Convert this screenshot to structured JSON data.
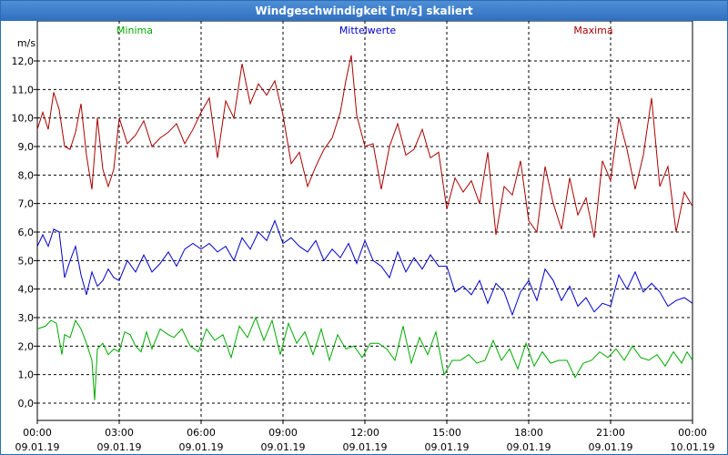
{
  "window": {
    "title": "Windgeschwindigkeit [m/s] skaliert"
  },
  "chart_data": {
    "type": "line",
    "title": "Windgeschwindigkeit [m/s] skaliert",
    "ylabel": "m/s",
    "ylim": [
      -1,
      13
    ],
    "yticks": [
      "0,0",
      "1,0",
      "2,0",
      "3,0",
      "4,0",
      "5,0",
      "6,0",
      "7,0",
      "8,0",
      "9,0",
      "10,0",
      "11,0",
      "12,0"
    ],
    "x_hours": [
      0,
      24
    ],
    "xticks": [
      {
        "time": "00:00",
        "date": "09.01.19"
      },
      {
        "time": "03:00",
        "date": "09.01.19"
      },
      {
        "time": "06:00",
        "date": "09.01.19"
      },
      {
        "time": "09:00",
        "date": "09.01.19"
      },
      {
        "time": "12:00",
        "date": "09.01.19"
      },
      {
        "time": "15:00",
        "date": "09.01.19"
      },
      {
        "time": "18:00",
        "date": "09.01.19"
      },
      {
        "time": "21:00",
        "date": "09.01.19"
      },
      {
        "time": "00:00",
        "date": "10.01.19"
      }
    ],
    "grid": true,
    "series": [
      {
        "name": "Minima",
        "color": "#00aa00",
        "x": [
          0,
          0.3,
          0.5,
          0.7,
          0.9,
          1.0,
          1.2,
          1.4,
          1.6,
          1.8,
          2.0,
          2.1,
          2.2,
          2.4,
          2.6,
          2.8,
          3.0,
          3.2,
          3.4,
          3.6,
          3.8,
          4.0,
          4.2,
          4.5,
          4.8,
          5.0,
          5.3,
          5.6,
          5.9,
          6.2,
          6.5,
          6.8,
          7.1,
          7.4,
          7.7,
          8.0,
          8.3,
          8.6,
          8.9,
          9.2,
          9.5,
          9.8,
          10.1,
          10.4,
          10.7,
          11.0,
          11.3,
          11.6,
          11.9,
          12.2,
          12.5,
          12.8,
          13.1,
          13.4,
          13.7,
          14.0,
          14.3,
          14.6,
          14.9,
          15.2,
          15.5,
          15.8,
          16.1,
          16.4,
          16.7,
          17.0,
          17.3,
          17.6,
          17.9,
          18.2,
          18.5,
          18.8,
          19.1,
          19.4,
          19.7,
          20.0,
          20.3,
          20.6,
          20.9,
          21.2,
          21.5,
          21.8,
          22.1,
          22.4,
          22.7,
          23.0,
          23.3,
          23.6,
          23.8,
          24.0
        ],
        "values": [
          2.6,
          2.7,
          2.9,
          2.8,
          1.7,
          2.4,
          2.3,
          2.9,
          2.6,
          2.1,
          1.5,
          0.1,
          1.9,
          2.1,
          1.7,
          1.9,
          1.8,
          2.5,
          2.4,
          2.0,
          1.8,
          2.5,
          1.9,
          2.6,
          2.4,
          2.3,
          2.6,
          2.0,
          1.8,
          2.6,
          2.2,
          2.4,
          1.6,
          2.7,
          2.3,
          3.0,
          2.2,
          2.9,
          1.7,
          2.8,
          2.1,
          2.5,
          1.7,
          2.6,
          1.5,
          2.4,
          1.9,
          2.0,
          1.6,
          2.1,
          2.1,
          1.9,
          1.5,
          2.7,
          1.4,
          2.3,
          1.7,
          2.5,
          1.0,
          1.5,
          1.5,
          1.7,
          1.4,
          1.5,
          2.2,
          1.5,
          1.9,
          1.2,
          2.1,
          1.3,
          1.8,
          1.4,
          1.5,
          1.5,
          0.9,
          1.4,
          1.5,
          1.8,
          1.6,
          1.9,
          1.5,
          2.0,
          1.6,
          1.5,
          1.7,
          1.3,
          1.8,
          1.4,
          1.8,
          1.5
        ]
      },
      {
        "name": "Mittelwerte",
        "color": "#0000cc",
        "x": [
          0,
          0.2,
          0.4,
          0.6,
          0.8,
          1.0,
          1.2,
          1.4,
          1.6,
          1.8,
          2.0,
          2.2,
          2.4,
          2.6,
          2.8,
          3.0,
          3.3,
          3.6,
          3.9,
          4.2,
          4.5,
          4.8,
          5.1,
          5.4,
          5.7,
          6.0,
          6.3,
          6.6,
          6.9,
          7.2,
          7.5,
          7.8,
          8.1,
          8.4,
          8.7,
          9.0,
          9.3,
          9.6,
          9.9,
          10.2,
          10.5,
          10.8,
          11.1,
          11.4,
          11.7,
          12.0,
          12.3,
          12.6,
          12.9,
          13.2,
          13.5,
          13.8,
          14.1,
          14.4,
          14.7,
          15.0,
          15.3,
          15.6,
          15.9,
          16.2,
          16.5,
          16.8,
          17.1,
          17.4,
          17.7,
          18.0,
          18.3,
          18.6,
          18.9,
          19.2,
          19.5,
          19.8,
          20.1,
          20.4,
          20.7,
          21.0,
          21.3,
          21.6,
          21.9,
          22.2,
          22.5,
          22.8,
          23.1,
          23.4,
          23.7,
          24.0
        ],
        "values": [
          5.5,
          5.9,
          5.5,
          6.1,
          6.0,
          4.4,
          5.0,
          5.5,
          4.5,
          3.8,
          4.6,
          4.1,
          4.3,
          4.7,
          4.4,
          4.3,
          5.0,
          4.6,
          5.2,
          4.6,
          4.9,
          5.3,
          4.8,
          5.4,
          5.6,
          5.4,
          5.6,
          5.3,
          5.5,
          5.0,
          5.8,
          5.4,
          6.0,
          5.7,
          6.4,
          5.6,
          5.8,
          5.5,
          5.3,
          5.7,
          5.0,
          5.4,
          5.1,
          5.6,
          4.9,
          5.7,
          5.0,
          4.8,
          4.4,
          5.3,
          4.6,
          5.1,
          4.7,
          5.2,
          4.8,
          4.8,
          3.9,
          4.1,
          3.8,
          4.3,
          3.5,
          4.2,
          3.9,
          3.1,
          3.9,
          4.3,
          3.6,
          4.7,
          4.3,
          3.6,
          4.1,
          3.4,
          3.7,
          3.2,
          3.5,
          3.4,
          4.5,
          4.0,
          4.6,
          3.9,
          4.2,
          3.9,
          3.4,
          3.6,
          3.7,
          3.5
        ]
      },
      {
        "name": "Maxima",
        "color": "#aa0000",
        "x": [
          0,
          0.2,
          0.4,
          0.6,
          0.8,
          1.0,
          1.2,
          1.4,
          1.6,
          1.8,
          2.0,
          2.2,
          2.4,
          2.6,
          2.8,
          3.0,
          3.3,
          3.6,
          3.9,
          4.2,
          4.5,
          4.8,
          5.1,
          5.4,
          5.7,
          6.0,
          6.3,
          6.6,
          6.9,
          7.2,
          7.5,
          7.8,
          8.1,
          8.4,
          8.7,
          9.0,
          9.3,
          9.6,
          9.9,
          10.2,
          10.5,
          10.8,
          11.1,
          11.3,
          11.5,
          11.7,
          12.0,
          12.3,
          12.6,
          12.9,
          13.2,
          13.5,
          13.8,
          14.1,
          14.4,
          14.7,
          15.0,
          15.3,
          15.6,
          15.9,
          16.2,
          16.5,
          16.8,
          17.1,
          17.4,
          17.7,
          18.0,
          18.3,
          18.6,
          18.9,
          19.2,
          19.5,
          19.8,
          20.1,
          20.4,
          20.7,
          21.0,
          21.3,
          21.6,
          21.9,
          22.2,
          22.5,
          22.8,
          23.1,
          23.4,
          23.7,
          24.0
        ],
        "values": [
          9.6,
          10.2,
          9.6,
          10.9,
          10.3,
          9.0,
          8.9,
          9.5,
          10.5,
          8.7,
          7.5,
          10.0,
          8.2,
          7.6,
          8.2,
          10.0,
          9.1,
          9.4,
          9.9,
          9.0,
          9.3,
          9.5,
          9.8,
          9.1,
          9.6,
          10.2,
          10.7,
          8.6,
          10.6,
          10.0,
          11.9,
          10.5,
          11.2,
          10.8,
          11.3,
          10.1,
          8.4,
          8.8,
          7.6,
          8.3,
          8.9,
          9.3,
          10.2,
          11.3,
          12.2,
          10.1,
          9.0,
          9.1,
          7.5,
          9.0,
          9.8,
          8.7,
          8.9,
          9.6,
          8.6,
          8.8,
          6.8,
          7.9,
          7.4,
          7.8,
          7.0,
          8.8,
          5.9,
          7.6,
          7.3,
          8.5,
          6.4,
          6.0,
          8.3,
          7.0,
          6.1,
          7.9,
          6.6,
          7.2,
          5.8,
          8.5,
          7.8,
          10.0,
          8.9,
          7.5,
          8.7,
          10.7,
          7.6,
          8.3,
          6.0,
          7.4,
          6.9
        ]
      }
    ]
  }
}
